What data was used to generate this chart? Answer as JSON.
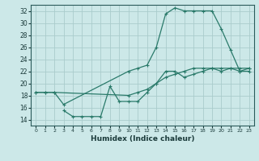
{
  "background_color": "#cce8e8",
  "grid_color": "#aacccc",
  "line_color": "#2a7a6a",
  "xlabel": "Humidex (Indice chaleur)",
  "xlim": [
    -0.5,
    23.5
  ],
  "ylim": [
    13,
    33
  ],
  "xticks": [
    0,
    1,
    2,
    3,
    4,
    5,
    6,
    7,
    8,
    9,
    10,
    11,
    12,
    13,
    14,
    15,
    16,
    17,
    18,
    19,
    20,
    21,
    22,
    23
  ],
  "yticks": [
    14,
    16,
    18,
    20,
    22,
    24,
    26,
    28,
    30,
    32
  ],
  "line1_x": [
    0,
    1,
    2,
    10,
    11,
    12,
    13,
    14,
    15,
    16,
    17,
    18,
    19,
    20,
    21,
    22,
    23
  ],
  "line1_y": [
    18.5,
    18.5,
    18.5,
    18,
    18.5,
    19,
    20,
    21,
    21.5,
    22,
    22.5,
    22.5,
    22.5,
    22.5,
    22.5,
    22.5,
    22.5
  ],
  "line2_x": [
    0,
    1,
    2,
    3,
    10,
    11,
    12,
    13,
    14,
    15,
    16,
    17,
    18,
    19,
    20,
    21,
    22,
    23
  ],
  "line2_y": [
    18.5,
    18.5,
    18.5,
    16.5,
    22,
    22.5,
    23,
    26,
    31.5,
    32.5,
    32,
    32,
    32,
    32,
    29,
    25.5,
    22,
    22.5
  ],
  "line3_x": [
    3,
    4,
    5,
    6,
    7,
    8,
    9,
    10,
    11,
    12,
    13,
    14,
    15,
    16,
    17,
    18,
    19,
    20,
    21,
    22,
    23
  ],
  "line3_y": [
    15.5,
    14.5,
    14.5,
    14.5,
    14.5,
    19.5,
    17,
    17,
    17,
    18.5,
    20,
    22,
    22,
    21,
    21.5,
    22,
    22.5,
    22,
    22.5,
    22,
    22
  ]
}
